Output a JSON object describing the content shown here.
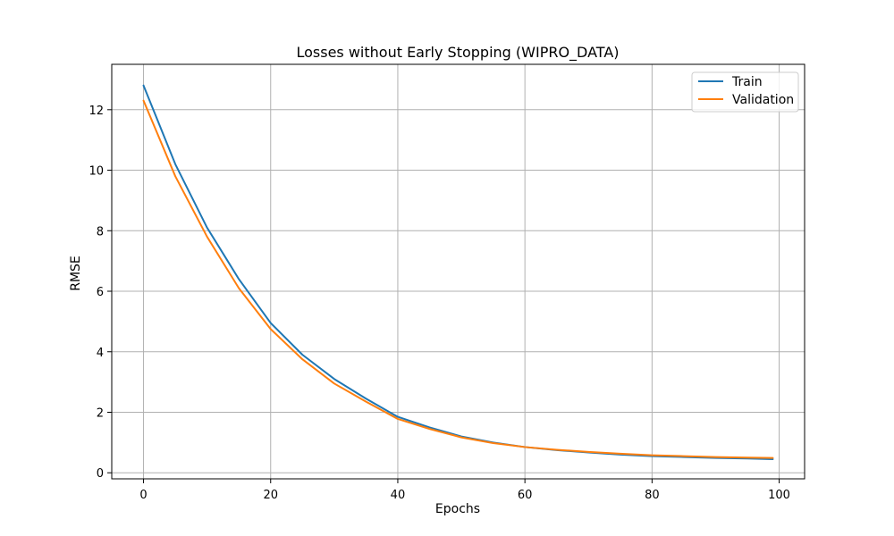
{
  "chart_data": {
    "type": "line",
    "title": "Losses without Early Stopping (WIPRO_DATA)",
    "xlabel": "Epochs",
    "ylabel": "RMSE",
    "xlim": [
      -5,
      104
    ],
    "ylim": [
      -0.2,
      13.5
    ],
    "xticks": [
      0,
      20,
      40,
      60,
      80,
      100
    ],
    "yticks": [
      0,
      2,
      4,
      6,
      8,
      10,
      12
    ],
    "grid": true,
    "legend_position": "top-right",
    "x": [
      0,
      5,
      10,
      15,
      20,
      25,
      30,
      35,
      40,
      45,
      50,
      55,
      60,
      65,
      70,
      75,
      80,
      85,
      90,
      95,
      99
    ],
    "series": [
      {
        "name": "Train",
        "color": "#1f77b4",
        "values": [
          12.8,
          10.2,
          8.1,
          6.4,
          4.95,
          3.9,
          3.1,
          2.45,
          1.85,
          1.5,
          1.2,
          1.0,
          0.85,
          0.75,
          0.67,
          0.6,
          0.55,
          0.52,
          0.49,
          0.47,
          0.45
        ]
      },
      {
        "name": "Validation",
        "color": "#ff7f0e",
        "values": [
          12.3,
          9.8,
          7.8,
          6.1,
          4.75,
          3.75,
          2.95,
          2.35,
          1.78,
          1.45,
          1.17,
          0.98,
          0.85,
          0.76,
          0.69,
          0.63,
          0.58,
          0.55,
          0.52,
          0.5,
          0.49
        ]
      }
    ]
  }
}
